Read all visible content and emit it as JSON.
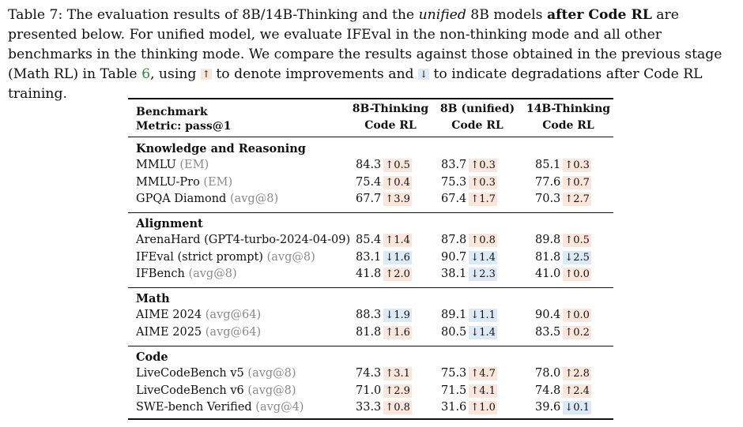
{
  "caption": {
    "label": "Table 7:",
    "t1": " The evaluation results of 8B/14B-Thinking and the ",
    "unified": "unified",
    "t2": " 8B models ",
    "after": "after Code RL",
    "t3": " are presented below. For unified model, we evaluate IFEval in the non-thinking mode and all other benchmarks in the thinking mode. We compare the results against those obtained in the previous stage (Math RL) in Table ",
    "ref": "6",
    "t4": ", using ",
    "up_arrow": "↑",
    "t5": " to denote improvements and ",
    "down_arrow": "↓",
    "t6": " to indicate degradations after Code RL training."
  },
  "header": {
    "benchmark": "Benchmark",
    "metric": "Metric: pass@1",
    "cols": [
      {
        "line1": "8B-Thinking",
        "line2": "Code RL"
      },
      {
        "line1": "8B (unified)",
        "line2": "Code RL"
      },
      {
        "line1": "14B-Thinking",
        "line2": "Code RL"
      }
    ]
  },
  "sections": [
    {
      "title": "Knowledge and Reasoning",
      "rows": [
        {
          "name": "MMLU",
          "metric": "(EM)",
          "cells": [
            [
              "84.3",
              "↑0.5",
              "up"
            ],
            [
              "83.7",
              "↑0.3",
              "up"
            ],
            [
              "85.1",
              "↑0.3",
              "up"
            ]
          ]
        },
        {
          "name": "MMLU-Pro",
          "metric": "(EM)",
          "cells": [
            [
              "75.4",
              "↑0.4",
              "up"
            ],
            [
              "75.3",
              "↑0.3",
              "up"
            ],
            [
              "77.6",
              "↑0.7",
              "up"
            ]
          ]
        },
        {
          "name": "GPQA Diamond",
          "metric": "(avg@8)",
          "cells": [
            [
              "67.7",
              "↑3.9",
              "up"
            ],
            [
              "67.4",
              "↑1.7",
              "up"
            ],
            [
              "70.3",
              "↑2.7",
              "up"
            ]
          ]
        }
      ]
    },
    {
      "title": "Alignment",
      "rows": [
        {
          "name": "ArenaHard (GPT4-turbo-2024-04-09)",
          "metric": "",
          "cells": [
            [
              "85.4",
              "↑1.4",
              "up"
            ],
            [
              "87.8",
              "↑0.8",
              "up"
            ],
            [
              "89.8",
              "↑0.5",
              "up"
            ]
          ]
        },
        {
          "name": "IFEval (strict prompt)",
          "metric": "(avg@8)",
          "cells": [
            [
              "83.1",
              "↓1.6",
              "down"
            ],
            [
              "90.7",
              "↓1.4",
              "down"
            ],
            [
              "81.8",
              "↓2.5",
              "down"
            ]
          ]
        },
        {
          "name": "IFBench",
          "metric": "(avg@8)",
          "cells": [
            [
              "41.8",
              "↑2.0",
              "up"
            ],
            [
              "38.1",
              "↓2.3",
              "down"
            ],
            [
              "41.0",
              "↑0.0",
              "up"
            ]
          ]
        }
      ]
    },
    {
      "title": "Math",
      "rows": [
        {
          "name": "AIME 2024",
          "metric": "(avg@64)",
          "cells": [
            [
              "88.3",
              "↓1.9",
              "down"
            ],
            [
              "89.1",
              "↓1.1",
              "down"
            ],
            [
              "90.4",
              "↑0.0",
              "up"
            ]
          ]
        },
        {
          "name": "AIME 2025",
          "metric": "(avg@64)",
          "cells": [
            [
              "81.8",
              "↑1.6",
              "up"
            ],
            [
              "80.5",
              "↓1.4",
              "down"
            ],
            [
              "83.5",
              "↑0.2",
              "up"
            ]
          ]
        }
      ]
    },
    {
      "title": "Code",
      "rows": [
        {
          "name": "LiveCodeBench v5",
          "metric": "(avg@8)",
          "cells": [
            [
              "74.3",
              "↑3.1",
              "up"
            ],
            [
              "75.3",
              "↑4.7",
              "up"
            ],
            [
              "78.0",
              "↑2.8",
              "up"
            ]
          ]
        },
        {
          "name": "LiveCodeBench v6",
          "metric": "(avg@8)",
          "cells": [
            [
              "71.0",
              "↑2.9",
              "up"
            ],
            [
              "71.5",
              "↑4.1",
              "up"
            ],
            [
              "74.8",
              "↑2.4",
              "up"
            ]
          ]
        },
        {
          "name": "SWE-bench Verified",
          "metric": "(avg@4)",
          "cells": [
            [
              "33.3",
              "↑0.8",
              "up"
            ],
            [
              "31.6",
              "↑1.0",
              "up"
            ],
            [
              "39.6",
              "↓0.1",
              "down"
            ]
          ]
        }
      ]
    }
  ]
}
